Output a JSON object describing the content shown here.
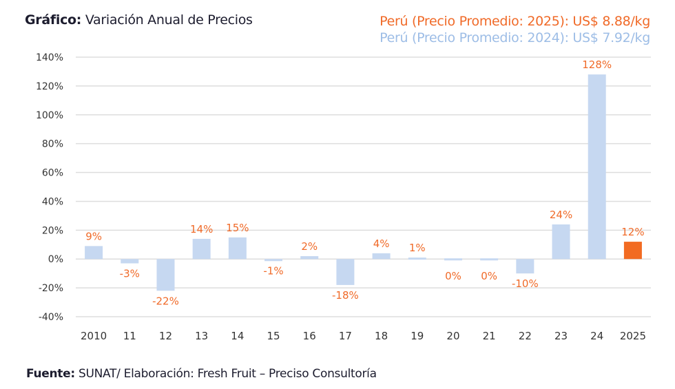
{
  "header": {
    "title_bold": "Gráfico:",
    "title_rest": " Variación Anual de Precios",
    "legend_2025": "Perú (Precio Promedio: 2025): US$ 8.88/kg",
    "legend_2024": "Perú (Precio Promedio: 2024): US$ 7.92/kg"
  },
  "footer": {
    "source_bold": "Fuente:",
    "source_rest": " SUNAT/ Elaboración: Fresh Fruit – Preciso Consultoría"
  },
  "chart_data": {
    "type": "bar",
    "title": "Variación Anual de Precios",
    "categories": [
      "2010",
      "11",
      "12",
      "13",
      "14",
      "15",
      "16",
      "17",
      "18",
      "19",
      "20",
      "21",
      "22",
      "23",
      "24",
      "2025"
    ],
    "values": [
      9,
      -3,
      -22,
      14,
      15,
      -1,
      2,
      -18,
      4,
      1,
      0,
      0,
      -10,
      24,
      128,
      12
    ],
    "data_labels": [
      "9%",
      "-3%",
      "-22%",
      "14%",
      "15%",
      "-1%",
      "2%",
      "-18%",
      "4%",
      "1%",
      "0%",
      "0%",
      "-10%",
      "24%",
      "128%",
      "12%"
    ],
    "y_ticks": [
      "140%",
      "120%",
      "100%",
      "80%",
      "60%",
      "40%",
      "20%",
      "0%",
      "-20%",
      "-40%"
    ],
    "ylim": [
      -40,
      140
    ],
    "grid": true,
    "colors": {
      "default": "#c6d8f1",
      "highlight": "#f26b22",
      "label": "#f06a28",
      "grid": "#dddddd"
    },
    "highlight_index": 15
  }
}
